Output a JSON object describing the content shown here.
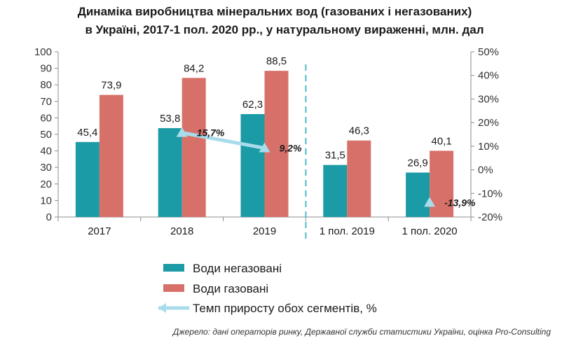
{
  "title_lines": [
    "Динаміка виробництва мінеральних вод (газованих і негазованих)",
    "в Україні, 2017-1 пол. 2020 рр., у натуральному вираженні, млн. дал"
  ],
  "chart_data": {
    "type": "bar",
    "categories": [
      "2017",
      "2018",
      "2019",
      "1 пол. 2019",
      "1 пол. 2020"
    ],
    "series": [
      {
        "name": "Води негазовані",
        "values": [
          45.4,
          53.8,
          62.3,
          31.5,
          26.9
        ],
        "labels": [
          "45,4",
          "53,8",
          "62,3",
          "31,5",
          "26,9"
        ],
        "color": "#1b9ba5"
      },
      {
        "name": "Води газовані",
        "values": [
          73.9,
          84.2,
          88.5,
          46.3,
          40.1
        ],
        "labels": [
          "73,9",
          "84,2",
          "88,5",
          "46,3",
          "40,1"
        ],
        "color": "#d8706a"
      }
    ],
    "growth": {
      "name": "Темп приросту обох сегментів, %",
      "categories": [
        "2018",
        "2019",
        "1 пол. 2020"
      ],
      "values": [
        15.7,
        9.2,
        -13.9
      ],
      "labels": [
        "15,7%",
        "9,2%",
        "-13,9%"
      ],
      "color": "#a9dcea"
    },
    "ylim_left": [
      0,
      100
    ],
    "yticks_left": [
      "0",
      "10",
      "20",
      "30",
      "40",
      "50",
      "60",
      "70",
      "80",
      "90",
      "100"
    ],
    "ylim_right": [
      -20,
      50
    ],
    "yticks_right": [
      "-20%",
      "-10%",
      "0%",
      "10%",
      "20%",
      "30%",
      "40%",
      "50%"
    ],
    "separator": "dashed line between 2019 and 1 пол. 2019",
    "legend_position": "bottom"
  },
  "source_note": "Джерело: дані операторів ринку, Державної служби статистики України, оцінка Pro-Consulting"
}
